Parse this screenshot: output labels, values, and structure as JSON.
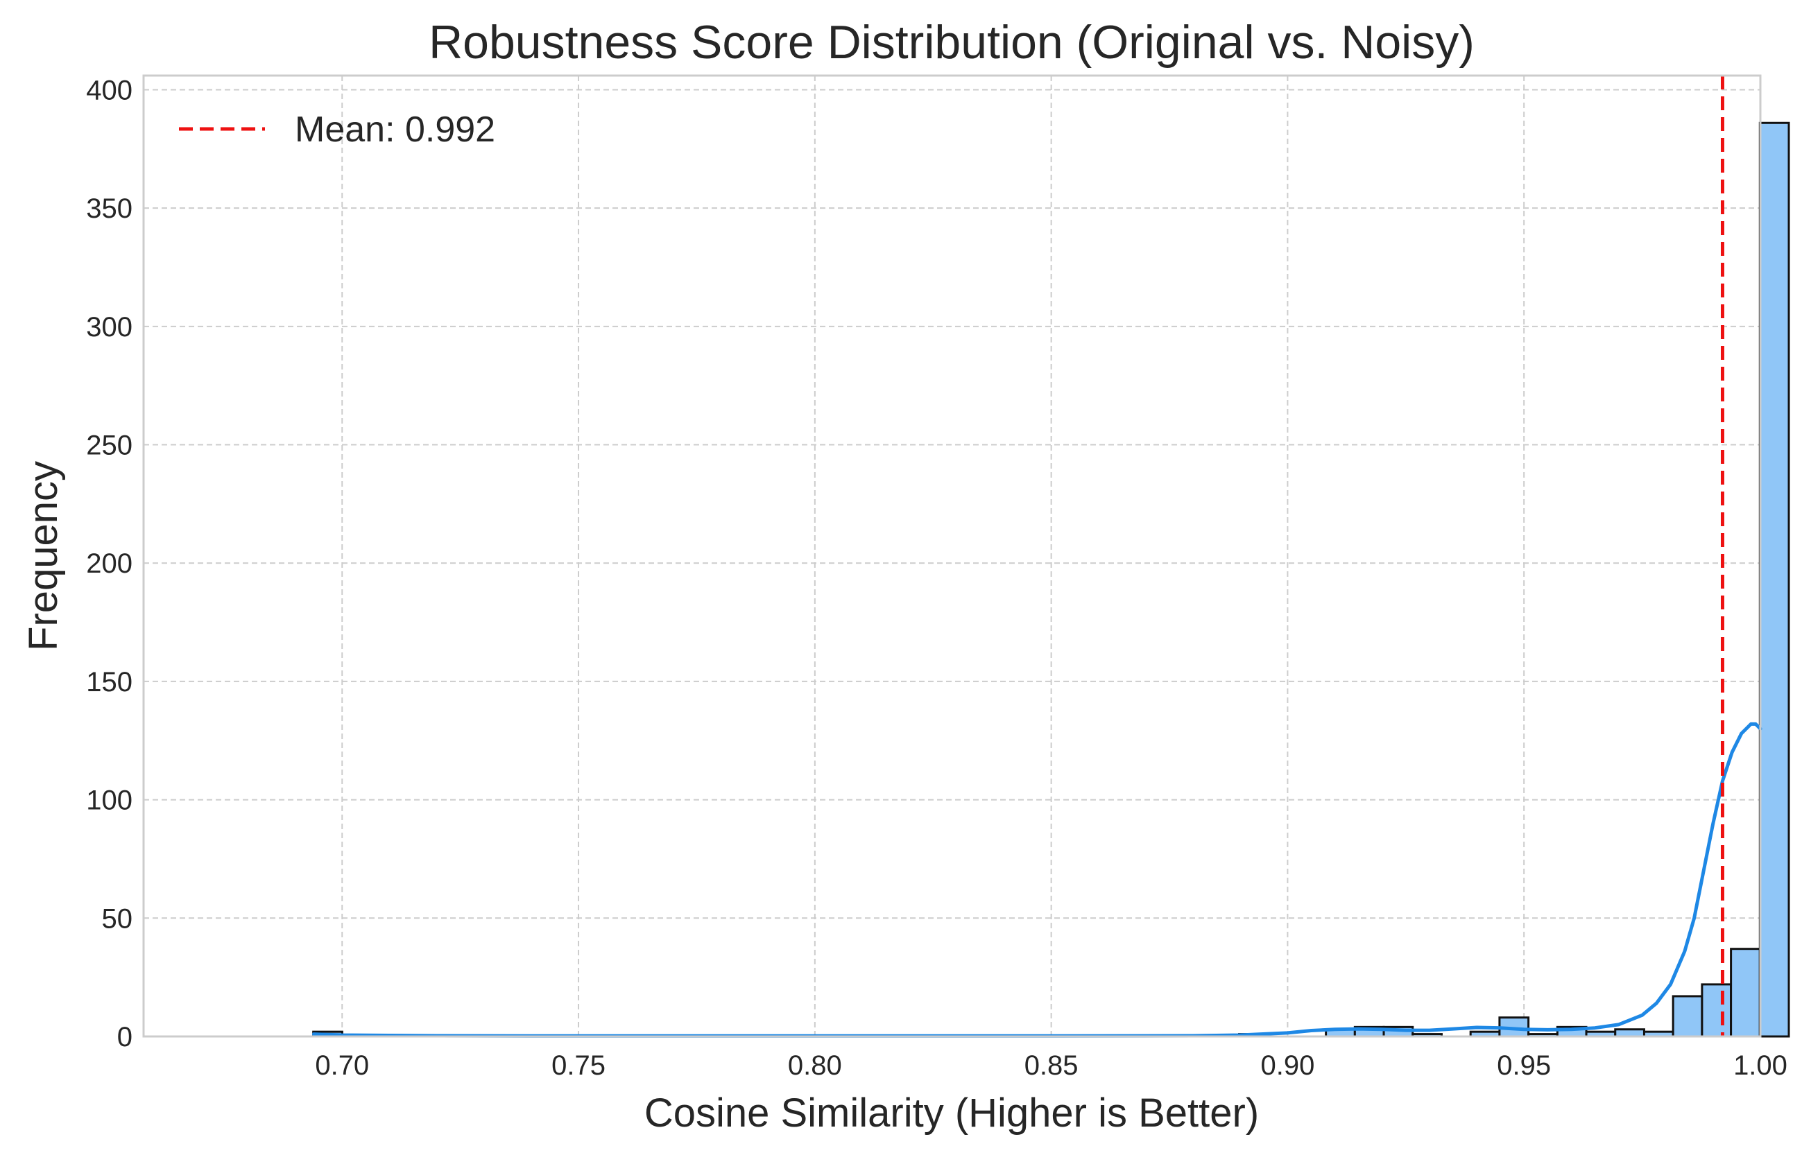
{
  "chart_data": {
    "type": "bar",
    "title": "Robustness Score Distribution (Original vs. Noisy)",
    "xlabel": "Cosine Similarity (Higher is Better)",
    "ylabel": "Frequency",
    "xlim": [
      0.658,
      1.0
    ],
    "ylim": [
      0,
      406
    ],
    "xticks": [
      0.7,
      0.75,
      0.8,
      0.85,
      0.9,
      0.95,
      1.0
    ],
    "xtick_labels": [
      "0.70",
      "0.75",
      "0.80",
      "0.85",
      "0.90",
      "0.95",
      "1.00"
    ],
    "yticks": [
      0,
      50,
      100,
      150,
      200,
      250,
      300,
      350,
      400
    ],
    "ytick_labels": [
      "0",
      "50",
      "100",
      "150",
      "200",
      "250",
      "300",
      "350",
      "400"
    ],
    "grid": true,
    "legend_position": "top-left",
    "colors": {
      "bar_fill": "#90c6f7",
      "bar_edge": "#111111",
      "kde_line": "#1e88e5",
      "mean_line": "#ee1111",
      "grid": "#cccccc",
      "axes_edge": "#cccccc"
    },
    "bins": {
      "x_start": 0.6939,
      "bin_width": 0.00612,
      "counts": [
        2,
        0,
        0,
        0,
        0,
        0,
        0,
        0,
        0,
        0,
        0,
        0,
        0,
        0,
        0,
        0,
        0,
        0,
        0,
        0,
        0,
        0,
        0,
        0,
        0,
        0,
        0,
        0,
        0,
        0,
        0,
        0,
        1,
        0,
        0,
        3,
        4,
        4,
        1,
        0,
        2,
        8,
        1,
        4,
        2,
        3,
        2,
        17,
        22,
        37,
        386
      ]
    },
    "kde": {
      "x": [
        0.694,
        0.7,
        0.72,
        0.75,
        0.8,
        0.85,
        0.88,
        0.89,
        0.9,
        0.905,
        0.91,
        0.915,
        0.92,
        0.925,
        0.93,
        0.935,
        0.94,
        0.945,
        0.95,
        0.955,
        0.96,
        0.965,
        0.97,
        0.975,
        0.978,
        0.981,
        0.984,
        0.986,
        0.988,
        0.99,
        0.992,
        0.994,
        0.996,
        0.998,
        0.999,
        1.0
      ],
      "y": [
        1,
        0.6,
        0.3,
        0.2,
        0.2,
        0.2,
        0.3,
        0.6,
        1.5,
        2.5,
        3.0,
        3.2,
        3.0,
        2.6,
        2.6,
        3.2,
        3.8,
        3.6,
        3.0,
        2.8,
        3.0,
        3.6,
        5.0,
        9.0,
        14,
        22,
        36,
        50,
        70,
        90,
        108,
        120,
        128,
        132,
        132,
        130
      ]
    },
    "mean_line": {
      "value": 0.992,
      "label": "Mean: 0.992"
    }
  }
}
